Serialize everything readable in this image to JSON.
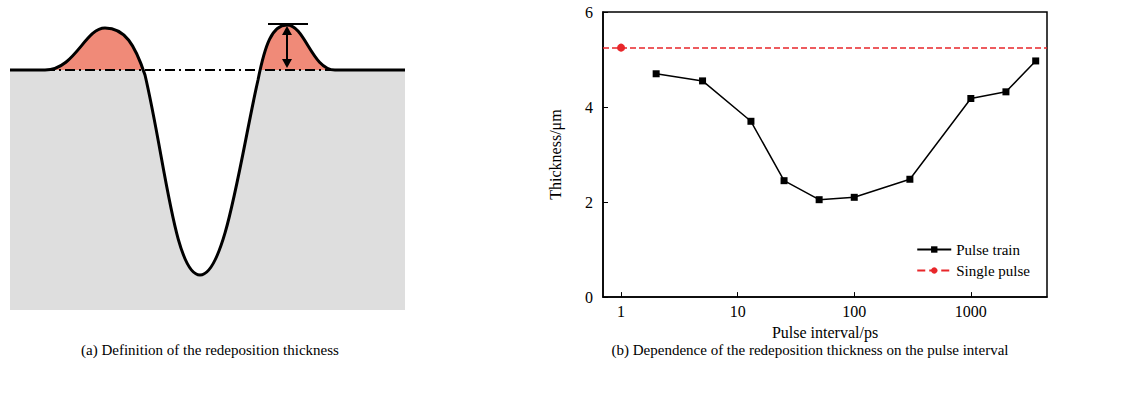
{
  "diagram": {
    "caption": "(a) Definition of the redeposition thickness"
  },
  "chart_data": {
    "type": "line",
    "caption": "(b) Dependence of the redeposition thickness on the pulse interval",
    "x_label": "Pulse interval/ps",
    "y_label": "Thickness/μm",
    "log": "x",
    "xlim": [
      0.7,
      4500
    ],
    "xticks": [
      1,
      10,
      100,
      1000
    ],
    "ylim": [
      0,
      6
    ],
    "yticks": [
      0,
      2,
      4,
      6
    ],
    "grid": false,
    "legend": "lower right",
    "series": [
      {
        "name": "Pulse train",
        "type": "line",
        "color": "#000000",
        "marker": "square",
        "line_style": "solid",
        "x": [
          2,
          5,
          13,
          25,
          50,
          100,
          300,
          1000,
          2000,
          3600
        ],
        "values": [
          4.7,
          4.55,
          3.7,
          2.45,
          2.05,
          2.1,
          2.48,
          4.18,
          4.32,
          4.97
        ]
      },
      {
        "name": "Single pulse",
        "type": "reference_line",
        "color": "#e8262a",
        "marker": "circle",
        "line_style": "dashed",
        "x": [
          1
        ],
        "values": [
          5.25
        ]
      }
    ]
  }
}
